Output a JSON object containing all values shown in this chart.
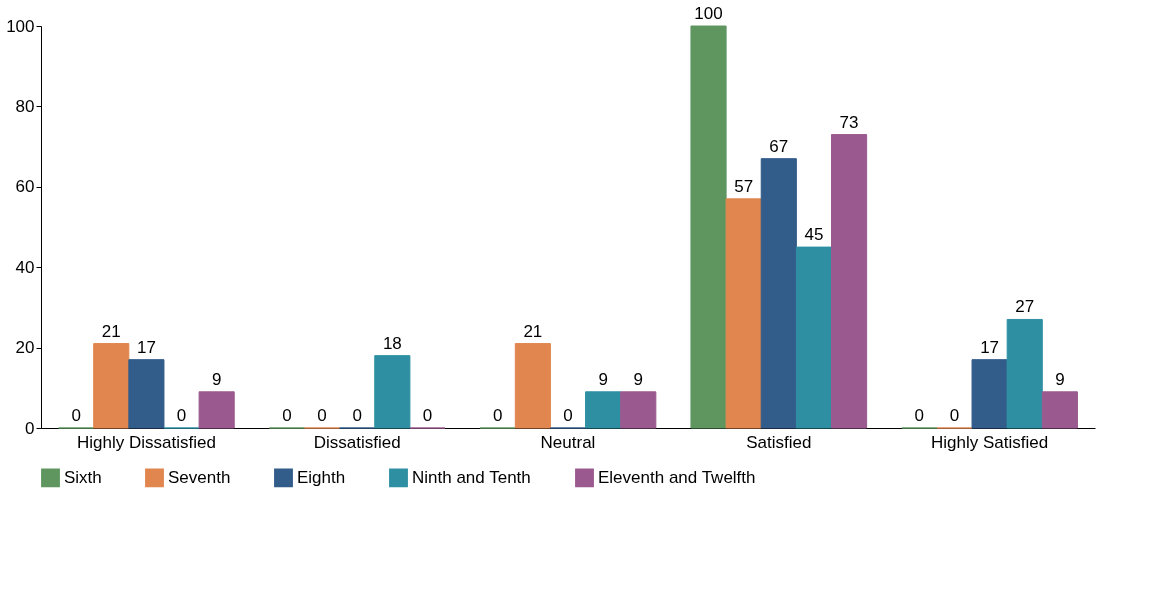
{
  "chart_data": {
    "type": "bar",
    "categories": [
      "Highly Dissatisfied",
      "Dissatisfied",
      "Neutral",
      "Satisfied",
      "Highly Satisfied"
    ],
    "series": [
      {
        "name": "Sixth",
        "color": "#5f9660",
        "values": [
          0,
          0,
          0,
          100,
          0
        ]
      },
      {
        "name": "Seventh",
        "color": "#e0864e",
        "values": [
          21,
          0,
          21,
          57,
          0
        ]
      },
      {
        "name": "Eighth",
        "color": "#325c8a",
        "values": [
          17,
          0,
          0,
          67,
          17
        ]
      },
      {
        "name": "Ninth and Tenth",
        "color": "#2e8fa3",
        "values": [
          0,
          18,
          9,
          45,
          27
        ]
      },
      {
        "name": "Eleventh and Twelfth",
        "color": "#9a5a8f",
        "values": [
          9,
          0,
          9,
          73,
          9
        ]
      }
    ],
    "ylim": [
      0,
      100
    ],
    "yticks": [
      0,
      20,
      40,
      60,
      80,
      100
    ],
    "grid": false,
    "legend": "bottom",
    "data_labels": true
  }
}
